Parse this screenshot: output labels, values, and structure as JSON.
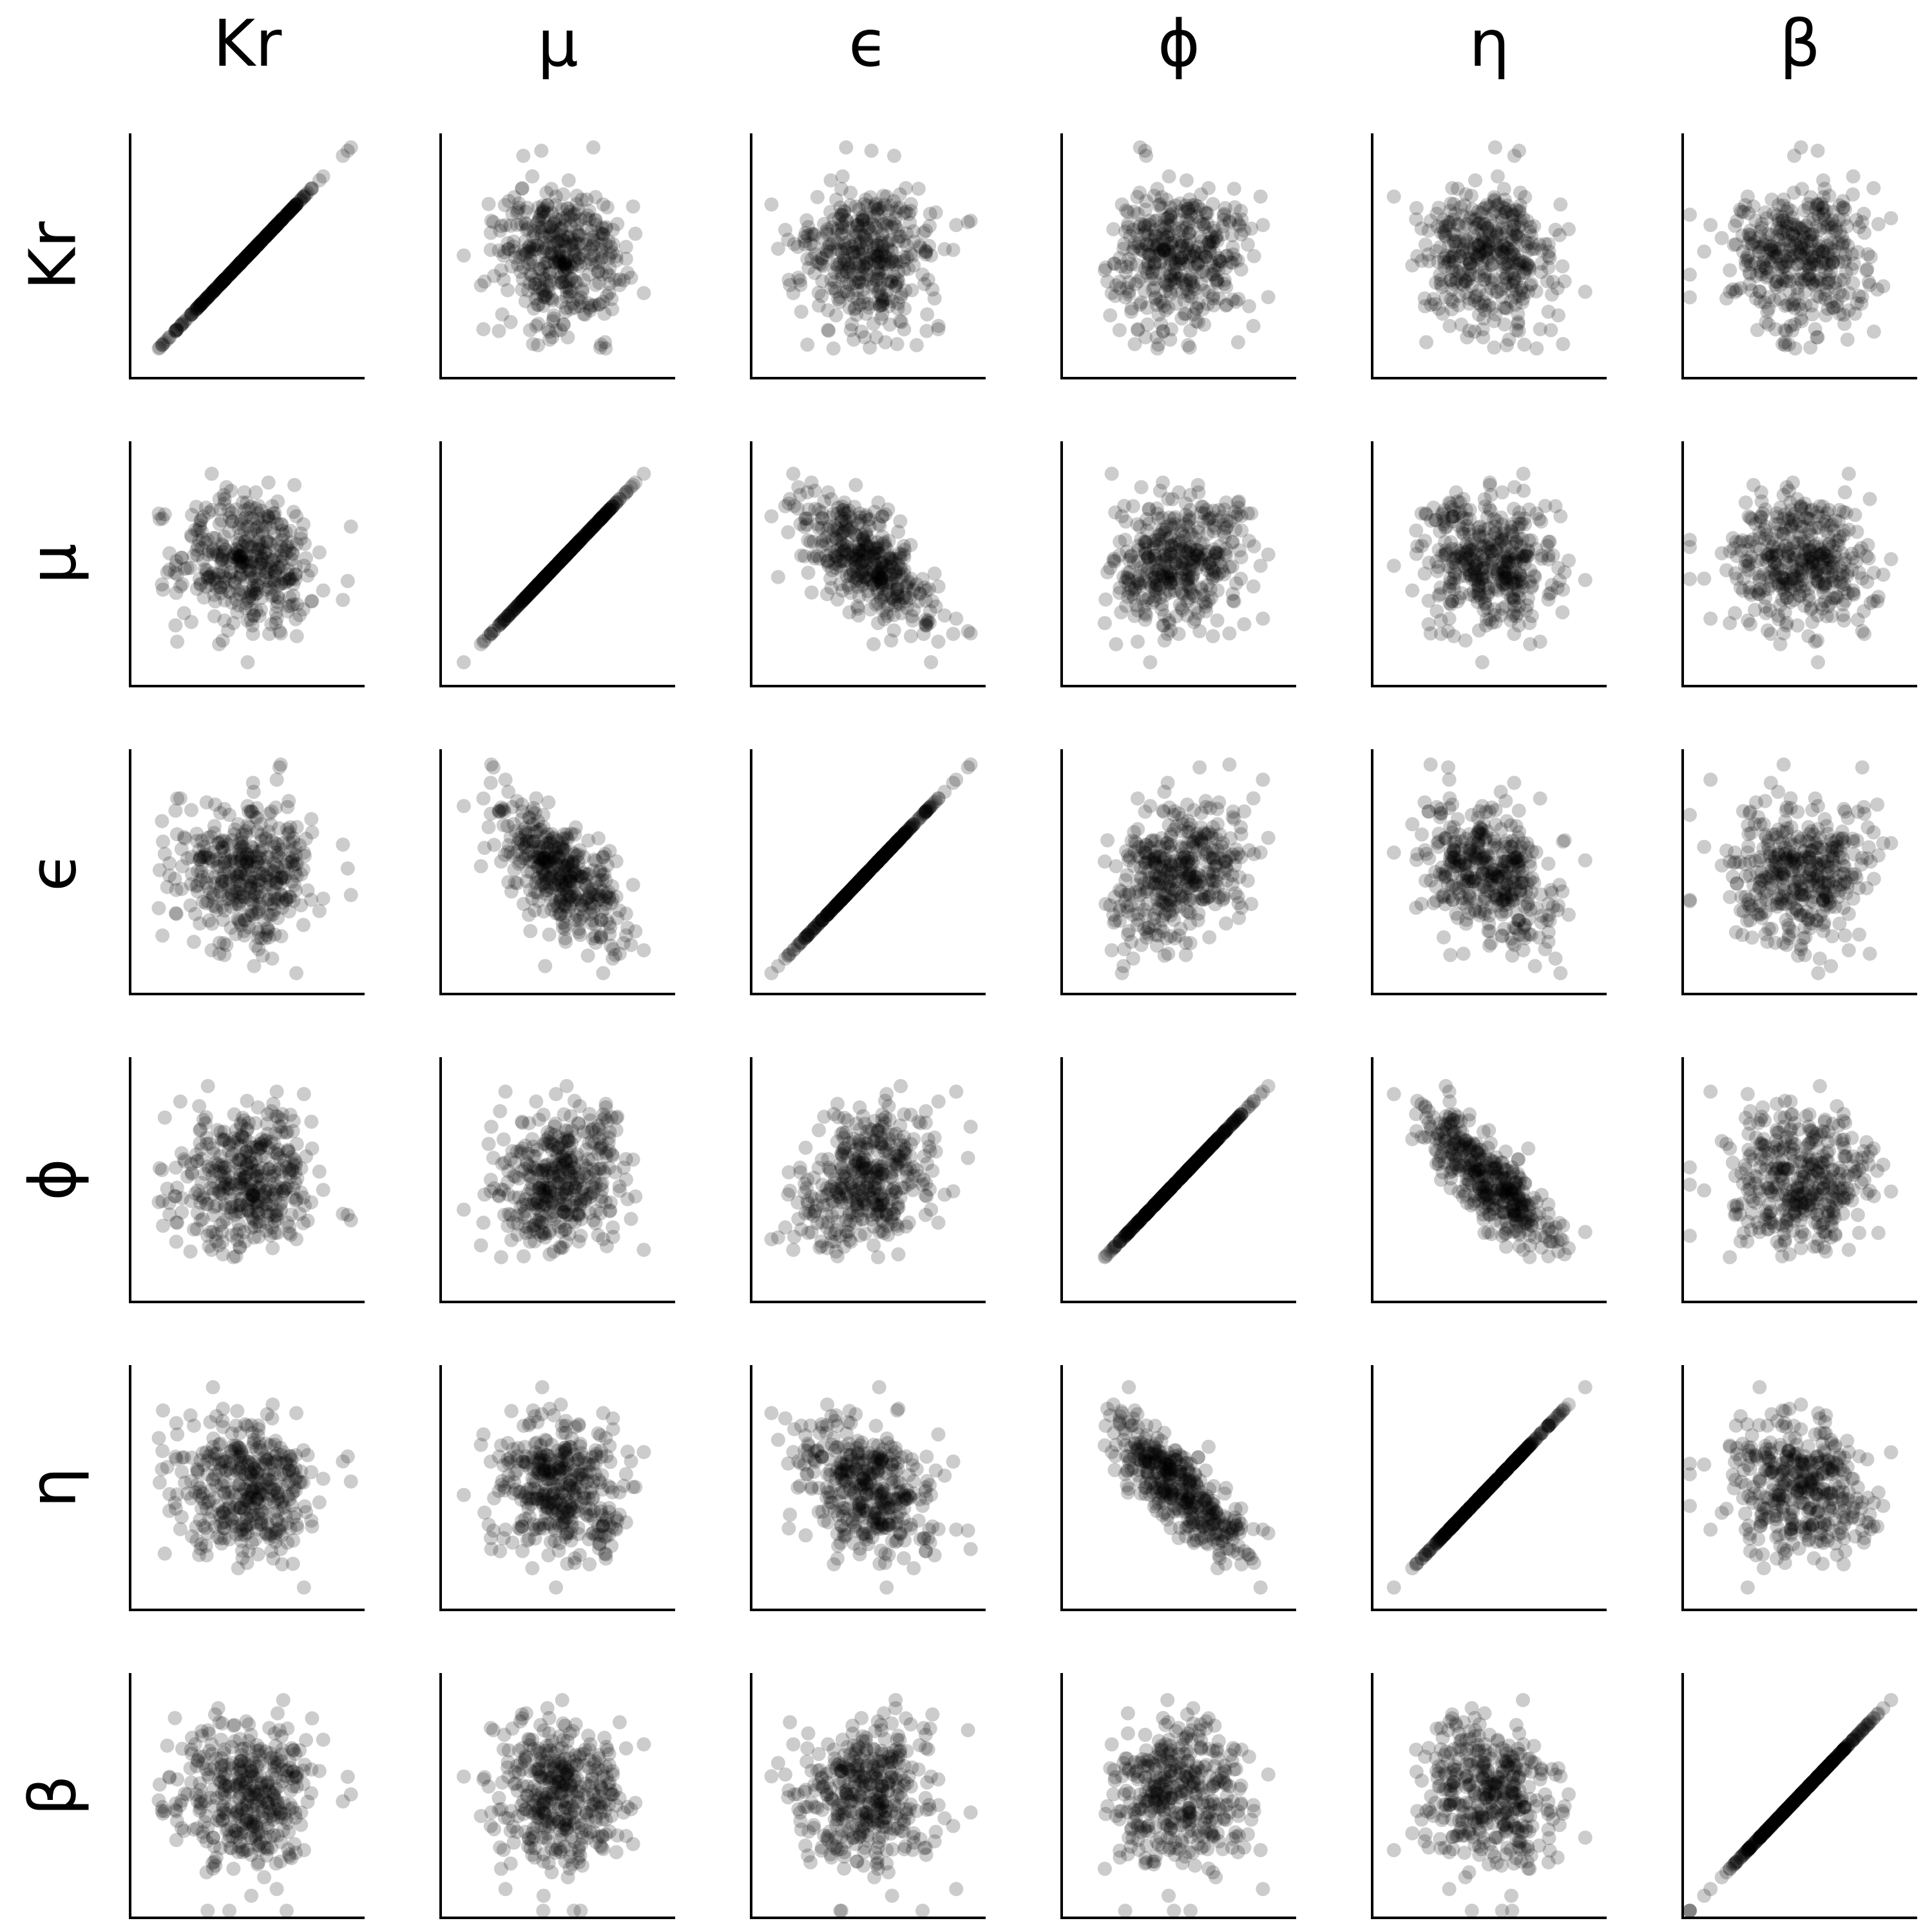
{
  "chart_data": {
    "type": "scatter",
    "subtype": "scatterplot-matrix",
    "variables": [
      "Kr",
      "μ",
      "ϵ",
      "ϕ",
      "η",
      "β"
    ],
    "column_labels": [
      "Kr",
      "μ",
      "ϵ",
      "ϕ",
      "η",
      "β"
    ],
    "row_labels": [
      "Kr",
      "μ",
      "ϵ",
      "ϕ",
      "η",
      "β"
    ],
    "axes_range": [
      -3.2,
      3.2
    ],
    "tick_labels": "none",
    "grid": false,
    "legend": "none",
    "point_color": "#000000",
    "point_opacity": 0.2,
    "axis_color": "#000000",
    "diagonal": "identity",
    "correlations": [
      [
        1.0,
        -0.1,
        0.0,
        0.0,
        0.0,
        0.0
      ],
      [
        -0.1,
        1.0,
        -0.7,
        0.2,
        -0.1,
        0.0
      ],
      [
        0.0,
        -0.7,
        1.0,
        0.2,
        -0.3,
        0.0
      ],
      [
        0.0,
        0.2,
        0.2,
        1.0,
        -0.8,
        0.0
      ],
      [
        0.0,
        -0.1,
        -0.3,
        -0.8,
        1.0,
        -0.2
      ],
      [
        0.0,
        0.0,
        0.0,
        0.0,
        -0.2,
        1.0
      ]
    ]
  }
}
